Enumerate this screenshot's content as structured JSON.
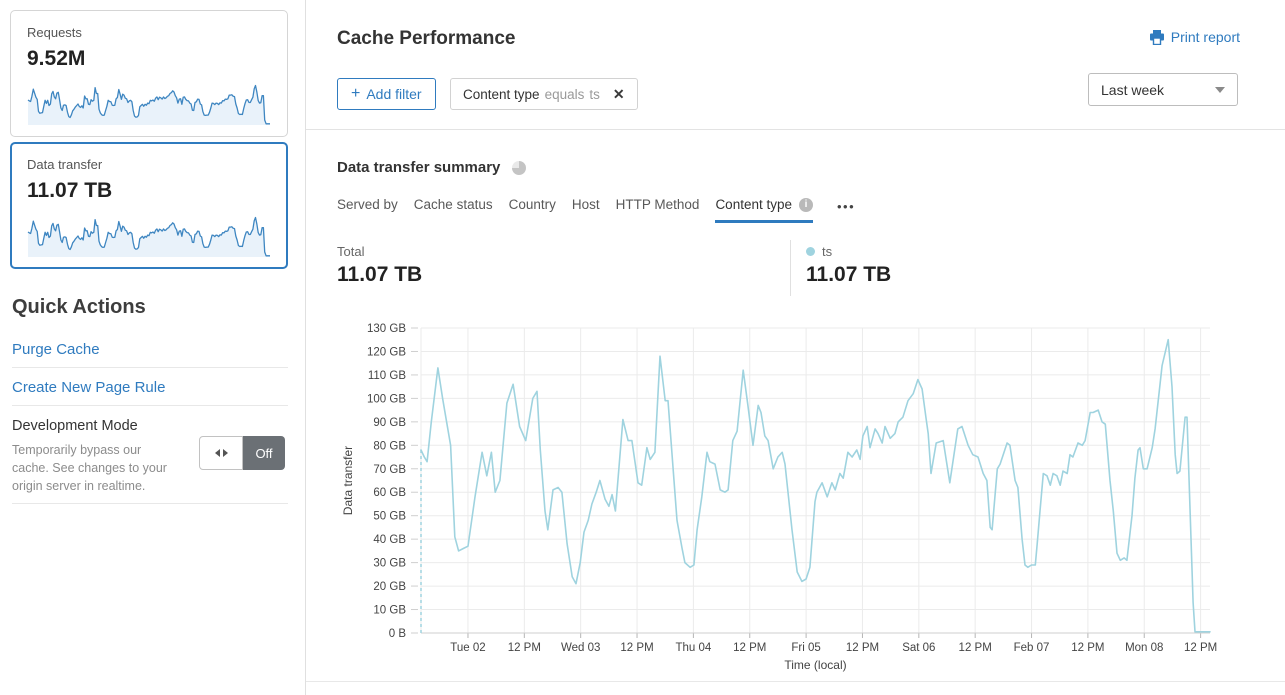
{
  "colors": {
    "accent": "#2f7bbf",
    "series_line": "#9fd3df",
    "sparkline_stroke": "#3e86c1",
    "sparkline_fill": "#e9f2fa",
    "grid": "#ebebeb",
    "axis_line": "#cfcfcf"
  },
  "sidebar": {
    "cards": [
      {
        "label": "Requests",
        "value": "9.52M",
        "active": false
      },
      {
        "label": "Data transfer",
        "value": "11.07 TB",
        "active": true
      }
    ],
    "quick_actions": {
      "title": "Quick Actions",
      "links": [
        "Purge Cache",
        "Create New Page Rule"
      ],
      "dev_mode": {
        "title": "Development Mode",
        "description": "Temporarily bypass our cache. See changes to your origin server in realtime.",
        "toggle_state": "Off"
      }
    }
  },
  "header": {
    "title": "Cache Performance",
    "print_label": "Print report",
    "add_filter_label": "Add filter",
    "add_filter_plus": "+",
    "filter_chip": {
      "field": "Content type",
      "operator": "equals",
      "value": "ts",
      "close_icon": "✕"
    },
    "range_selected": "Last week"
  },
  "summary": {
    "title": "Data transfer summary",
    "tabs": [
      {
        "label": "Served by",
        "active": false,
        "info": false
      },
      {
        "label": "Cache status",
        "active": false,
        "info": false
      },
      {
        "label": "Country",
        "active": false,
        "info": false
      },
      {
        "label": "Host",
        "active": false,
        "info": false
      },
      {
        "label": "HTTP Method",
        "active": false,
        "info": false
      },
      {
        "label": "Content type",
        "active": true,
        "info": true
      }
    ],
    "info_glyph": "i",
    "more_glyph": "•••",
    "total_label": "Total",
    "total_value": "11.07 TB",
    "series_label": "ts",
    "series_value": "11.07 TB"
  },
  "chart_data": {
    "type": "line",
    "title": "Data transfer summary",
    "xlabel": "Time (local)",
    "ylabel": "Data transfer",
    "unit": "GB",
    "ylim": [
      0,
      130
    ],
    "y_tick_step": 10,
    "y_tick_labels": [
      "0 B",
      "10 GB",
      "20 GB",
      "30 GB",
      "40 GB",
      "50 GB",
      "60 GB",
      "70 GB",
      "80 GB",
      "90 GB",
      "100 GB",
      "110 GB",
      "120 GB",
      "130 GB"
    ],
    "x_hours_total": 168,
    "x_ticks": [
      {
        "hour": 10,
        "label": "Tue 02"
      },
      {
        "hour": 22,
        "label": "12 PM"
      },
      {
        "hour": 34,
        "label": "Wed 03"
      },
      {
        "hour": 46,
        "label": "12 PM"
      },
      {
        "hour": 58,
        "label": "Thu 04"
      },
      {
        "hour": 70,
        "label": "12 PM"
      },
      {
        "hour": 82,
        "label": "Fri 05"
      },
      {
        "hour": 94,
        "label": "12 PM"
      },
      {
        "hour": 106,
        "label": "Sat 06"
      },
      {
        "hour": 118,
        "label": "12 PM"
      },
      {
        "hour": 130,
        "label": "Feb 07"
      },
      {
        "hour": 142,
        "label": "12 PM"
      },
      {
        "hour": 154,
        "label": "Mon 08"
      },
      {
        "hour": 166,
        "label": "12 PM"
      }
    ],
    "grid": true,
    "legend_position": "top-right",
    "leading_dashed_drop": true,
    "series": [
      {
        "name": "ts",
        "color": "#9fd3df",
        "points": [
          [
            0,
            78
          ],
          [
            0.7,
            75
          ],
          [
            1.3,
            73
          ],
          [
            2.2,
            90
          ],
          [
            3.6,
            113
          ],
          [
            4.6,
            100
          ],
          [
            5.7,
            87
          ],
          [
            6.3,
            80
          ],
          [
            7.2,
            41
          ],
          [
            8,
            35
          ],
          [
            9,
            36
          ],
          [
            10,
            37
          ],
          [
            11.5,
            58
          ],
          [
            13,
            77
          ],
          [
            14,
            67
          ],
          [
            15,
            77
          ],
          [
            15.8,
            60
          ],
          [
            16.8,
            65
          ],
          [
            18.3,
            98
          ],
          [
            19.6,
            106
          ],
          [
            21,
            88
          ],
          [
            22.3,
            82
          ],
          [
            23.8,
            100
          ],
          [
            24.7,
            103
          ],
          [
            25.4,
            78
          ],
          [
            26.4,
            52
          ],
          [
            27,
            44
          ],
          [
            28.1,
            61
          ],
          [
            29.2,
            62
          ],
          [
            30,
            60
          ],
          [
            31.1,
            38
          ],
          [
            32.2,
            24
          ],
          [
            33,
            21
          ],
          [
            33.9,
            30
          ],
          [
            34.7,
            43
          ],
          [
            35.6,
            48
          ],
          [
            36.4,
            55
          ],
          [
            37.3,
            60
          ],
          [
            38.1,
            65
          ],
          [
            39.2,
            57
          ],
          [
            40,
            54
          ],
          [
            40.7,
            59
          ],
          [
            41.4,
            52
          ],
          [
            43,
            91
          ],
          [
            44.1,
            82
          ],
          [
            44.9,
            82
          ],
          [
            46.2,
            64
          ],
          [
            47,
            63
          ],
          [
            48.1,
            79
          ],
          [
            48.8,
            74
          ],
          [
            49.8,
            77
          ],
          [
            50.9,
            118
          ],
          [
            52,
            99
          ],
          [
            52.6,
            99
          ],
          [
            54.5,
            48
          ],
          [
            55.6,
            36
          ],
          [
            56.2,
            30
          ],
          [
            57.3,
            28
          ],
          [
            58.1,
            29
          ],
          [
            58.8,
            44
          ],
          [
            59.8,
            58
          ],
          [
            60.9,
            77
          ],
          [
            61.5,
            73
          ],
          [
            62.6,
            72
          ],
          [
            63.7,
            61
          ],
          [
            64.7,
            60
          ],
          [
            65.4,
            61
          ],
          [
            66.4,
            82
          ],
          [
            67.3,
            86
          ],
          [
            68.6,
            112
          ],
          [
            69.6,
            97
          ],
          [
            70.7,
            80
          ],
          [
            71.8,
            97
          ],
          [
            72.4,
            94
          ],
          [
            73.2,
            84
          ],
          [
            73.9,
            82
          ],
          [
            75,
            70
          ],
          [
            76,
            75
          ],
          [
            76.9,
            77
          ],
          [
            77.5,
            72
          ],
          [
            79,
            44
          ],
          [
            80.1,
            26
          ],
          [
            81.1,
            22
          ],
          [
            82,
            23
          ],
          [
            82.8,
            28
          ],
          [
            83.9,
            56
          ],
          [
            84.3,
            60
          ],
          [
            85.4,
            64
          ],
          [
            86.5,
            58
          ],
          [
            87.5,
            64
          ],
          [
            88.2,
            61
          ],
          [
            89.2,
            68
          ],
          [
            89.9,
            66
          ],
          [
            90.9,
            77
          ],
          [
            91.8,
            75
          ],
          [
            92.8,
            78
          ],
          [
            93.5,
            74
          ],
          [
            94.1,
            84
          ],
          [
            95,
            88
          ],
          [
            95.6,
            79
          ],
          [
            96.7,
            87
          ],
          [
            97.3,
            85
          ],
          [
            98.2,
            81
          ],
          [
            98.8,
            88
          ],
          [
            99.9,
            83
          ],
          [
            100.9,
            85
          ],
          [
            101.6,
            90
          ],
          [
            102.6,
            92
          ],
          [
            103.7,
            99
          ],
          [
            104.8,
            102
          ],
          [
            105.8,
            108
          ],
          [
            106.7,
            104
          ],
          [
            107.5,
            92
          ],
          [
            108,
            85
          ],
          [
            108.6,
            68
          ],
          [
            109.7,
            81
          ],
          [
            111.2,
            82
          ],
          [
            112.6,
            64
          ],
          [
            114.3,
            87
          ],
          [
            115.2,
            88
          ],
          [
            116.5,
            80
          ],
          [
            117.5,
            76
          ],
          [
            118.6,
            75
          ],
          [
            119.7,
            68
          ],
          [
            120.5,
            65
          ],
          [
            121.2,
            45
          ],
          [
            121.6,
            44
          ],
          [
            122.7,
            70
          ],
          [
            123.3,
            72
          ],
          [
            124.8,
            81
          ],
          [
            125.4,
            80
          ],
          [
            126.5,
            65
          ],
          [
            127.1,
            62
          ],
          [
            128,
            40
          ],
          [
            128.6,
            29
          ],
          [
            129.2,
            28
          ],
          [
            130,
            29
          ],
          [
            130.8,
            29
          ],
          [
            131.2,
            38
          ],
          [
            131.8,
            52
          ],
          [
            132.5,
            68
          ],
          [
            133.3,
            67
          ],
          [
            134,
            63
          ],
          [
            134.6,
            68
          ],
          [
            135.4,
            67
          ],
          [
            136.1,
            63
          ],
          [
            136.7,
            69
          ],
          [
            137.6,
            68
          ],
          [
            138.2,
            76
          ],
          [
            138.8,
            75
          ],
          [
            139.9,
            81
          ],
          [
            140.8,
            80
          ],
          [
            141.4,
            82
          ],
          [
            142.5,
            94
          ],
          [
            143.1,
            94
          ],
          [
            144.2,
            95
          ],
          [
            145,
            90
          ],
          [
            145.7,
            89
          ],
          [
            146.7,
            65
          ],
          [
            147.4,
            52
          ],
          [
            148.2,
            34
          ],
          [
            148.9,
            31
          ],
          [
            149.7,
            32
          ],
          [
            150.3,
            31
          ],
          [
            151.4,
            50
          ],
          [
            152,
            66
          ],
          [
            152.7,
            78
          ],
          [
            153.1,
            79
          ],
          [
            153.8,
            70
          ],
          [
            154.6,
            70
          ],
          [
            155.7,
            79
          ],
          [
            156.3,
            87
          ],
          [
            157.8,
            114
          ],
          [
            159.1,
            125
          ],
          [
            159.9,
            105
          ],
          [
            160.6,
            76
          ],
          [
            161,
            68
          ],
          [
            161.6,
            69
          ],
          [
            162.7,
            92
          ],
          [
            163.1,
            92
          ],
          [
            164.4,
            13
          ],
          [
            164.8,
            0.5
          ],
          [
            166,
            0.5
          ],
          [
            167,
            0.5
          ],
          [
            168,
            0.5
          ]
        ]
      }
    ]
  }
}
